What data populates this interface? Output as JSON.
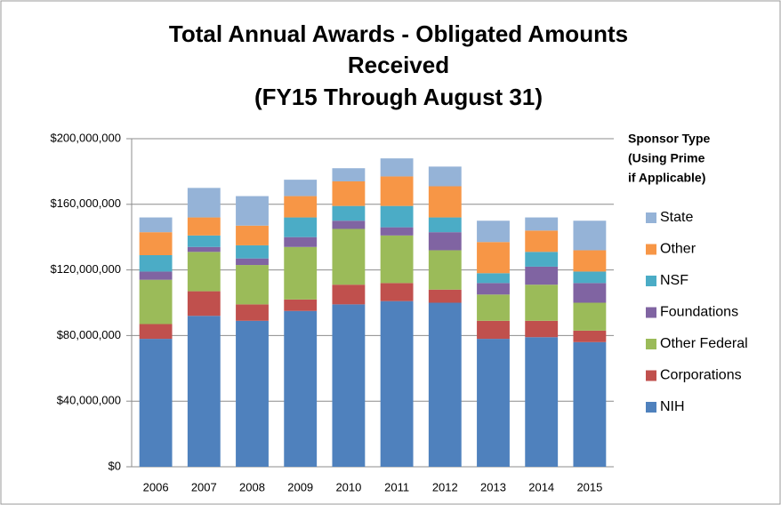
{
  "chart_data": {
    "type": "stacked_bar",
    "title": [
      "Total Annual Awards - Obligated Amounts",
      "Received",
      "(FY15 Through August 31)"
    ],
    "legend_title": [
      "Sponsor Type",
      "(Using Prime",
      "if Applicable)"
    ],
    "legend": "right",
    "grid": true,
    "categories": [
      "2006",
      "2007",
      "2008",
      "2009",
      "2010",
      "2011",
      "2012",
      "2013",
      "2014",
      "2015"
    ],
    "series": [
      {
        "name": "NIH",
        "color": "#4f81bd",
        "values": [
          78000000,
          92000000,
          89000000,
          95000000,
          99000000,
          101000000,
          100000000,
          78000000,
          79000000,
          76000000
        ]
      },
      {
        "name": "Corporations",
        "color": "#c0504d",
        "values": [
          9000000,
          15000000,
          10000000,
          7000000,
          12000000,
          11000000,
          8000000,
          11000000,
          10000000,
          7000000
        ]
      },
      {
        "name": "Other Federal",
        "color": "#9bbb59",
        "values": [
          27000000,
          24000000,
          24000000,
          32000000,
          34000000,
          29000000,
          24000000,
          16000000,
          22000000,
          17000000
        ]
      },
      {
        "name": "Foundations",
        "color": "#8064a2",
        "values": [
          5000000,
          3000000,
          4000000,
          6000000,
          5000000,
          5000000,
          11000000,
          7000000,
          11000000,
          12000000
        ]
      },
      {
        "name": "NSF",
        "color": "#4bacc6",
        "values": [
          10000000,
          7000000,
          8000000,
          12000000,
          9000000,
          13000000,
          9000000,
          6000000,
          9000000,
          7000000
        ]
      },
      {
        "name": "Other",
        "color": "#f79646",
        "values": [
          14000000,
          11000000,
          12000000,
          13000000,
          15000000,
          18000000,
          19000000,
          19000000,
          13000000,
          13000000
        ]
      },
      {
        "name": "State",
        "color": "#95b3d7",
        "values": [
          9000000,
          18000000,
          18000000,
          10000000,
          8000000,
          11000000,
          12000000,
          13000000,
          8000000,
          18000000
        ]
      }
    ],
    "ylim": [
      0,
      200000000
    ],
    "yticks": [
      {
        "value": 0,
        "label": "$0"
      },
      {
        "value": 40000000,
        "label": "$40,000,000"
      },
      {
        "value": 80000000,
        "label": "$80,000,000"
      },
      {
        "value": 120000000,
        "label": "$120,000,000"
      },
      {
        "value": 160000000,
        "label": "$160,000,000"
      },
      {
        "value": 200000000,
        "label": "$200,000,000"
      }
    ]
  }
}
